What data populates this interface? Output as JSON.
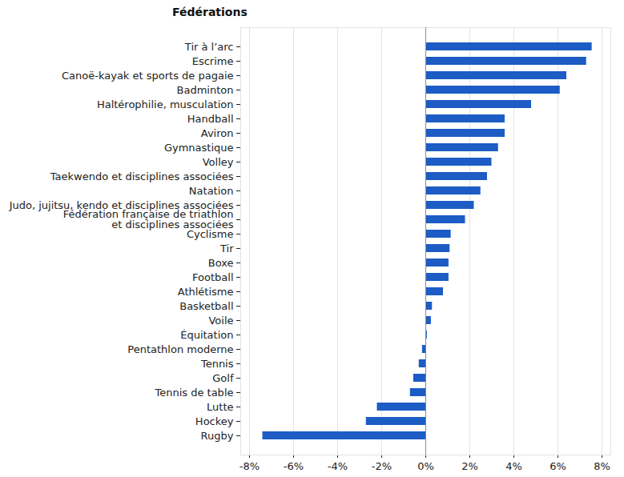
{
  "chart_data": {
    "type": "bar",
    "orientation": "horizontal",
    "title": "Fédérations",
    "categories": [
      "Tir à l’arc",
      "Escrime",
      "Canoë-kayak et sports de pagaie",
      "Badminton",
      "Haltérophilie, musculation",
      "Handball",
      "Aviron",
      "Gymnastique",
      "Volley",
      "Taekwendo et disciplines associées",
      "Natation",
      "Judo, jujitsu, kendo et disciplines associées",
      "Fédération française de triathlon\net disciplines associées",
      "Cyclisme",
      "Tir",
      "Boxe",
      "Football",
      "Athlétisme",
      "Basketball",
      "Voile",
      "Équitation",
      "Pentathlon moderne",
      "Tennis",
      "Golf",
      "Tennis de table",
      "Lutte",
      "Hockey",
      "Rugby"
    ],
    "values": [
      7.55,
      7.3,
      6.4,
      6.1,
      4.8,
      3.6,
      3.6,
      3.3,
      3.0,
      2.8,
      2.5,
      2.2,
      1.8,
      1.15,
      1.1,
      1.05,
      1.05,
      0.8,
      0.3,
      0.25,
      0.07,
      -0.15,
      -0.3,
      -0.55,
      -0.7,
      -2.2,
      -2.7,
      -7.4
    ],
    "color": "#1c5cc4",
    "xlim": [
      -8.4,
      8.4
    ],
    "xticks": [
      {
        "value": -8,
        "label": "-8%"
      },
      {
        "value": -6,
        "label": "-6%"
      },
      {
        "value": -4,
        "label": "-4%"
      },
      {
        "value": -2,
        "label": "-2%"
      },
      {
        "value": 0,
        "label": "0%"
      },
      {
        "value": 2,
        "label": "2%"
      },
      {
        "value": 4,
        "label": "4%"
      },
      {
        "value": 6,
        "label": "6%"
      },
      {
        "value": 8,
        "label": "8%"
      }
    ],
    "grid": true
  }
}
